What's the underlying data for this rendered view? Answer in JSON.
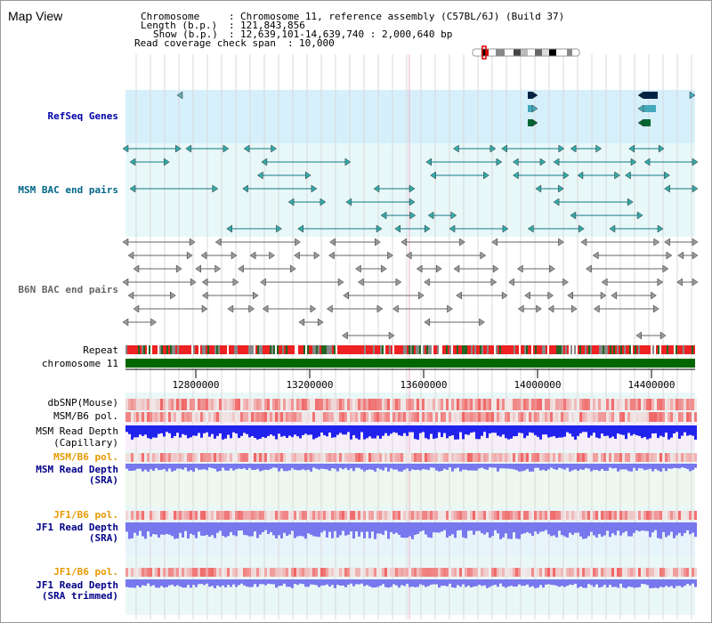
{
  "title": "Map View",
  "info": {
    "chromosome_label": "Chromosome",
    "chromosome_value": "Chromosome 11, reference assembly (C57BL/6J) (Build 37)",
    "length_label": "Length (b.p.)",
    "length_value": "121,843,856",
    "show_label": "Show (b.p.)",
    "show_value": "12,639,101-14,639,740 : 2,000,640 bp",
    "coverage_label": "Read coverage check span",
    "coverage_value": "10,000"
  },
  "tracks": {
    "refseq": "RefSeq Genes",
    "msm_bac": "MSM BAC end pairs",
    "b6n_bac": "B6N BAC end pairs",
    "repeat": "Repeat",
    "chromosome": "chromosome 11",
    "dbsnp": "dbSNP(Mouse)",
    "msm_b6_pol": "MSM/B6 pol.",
    "msm_depth_cap_1": "MSM Read Depth",
    "msm_depth_cap_2": "(Capillary)",
    "msm_b6_pol_2": "MSM/B6 pol.",
    "msm_depth_sra_1": "MSM Read Depth",
    "msm_depth_sra_2": "(SRA)",
    "jf1_b6_pol": "JF1/B6 pol.",
    "jf1_depth_sra_1": "JF1 Read Depth",
    "jf1_depth_sra_2": "(SRA)",
    "jf1_b6_pol_2": "JF1/B6 pol.",
    "jf1_depth_trim_1": "JF1 Read Depth",
    "jf1_depth_trim_2": "(SRA trimmed)"
  },
  "axis_ticks": [
    "12800000",
    "13200000",
    "13600000",
    "14000000",
    "14400000"
  ],
  "colors": {
    "refseq_bg": "#d6f0fb",
    "msm_bg": "#e8f8f8",
    "repeat_red": "#ee2222",
    "chromosome_green": "#006600",
    "snp_red": "#ee3333",
    "depth_blue": "#2222ee",
    "depth_light": "#7777ee"
  }
}
